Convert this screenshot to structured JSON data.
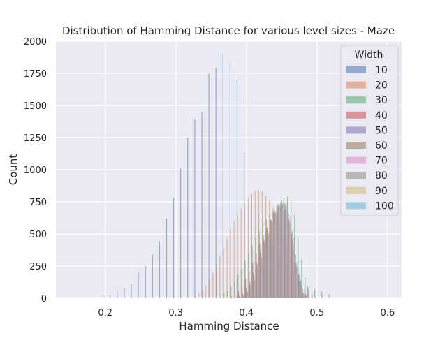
{
  "chart_data": {
    "type": "bar",
    "title": "Distribution of Hamming Distance for various level sizes - Maze",
    "xlabel": "Hamming Distance",
    "ylabel": "Count",
    "xlim": [
      0.13,
      0.62
    ],
    "ylim": [
      0,
      2000
    ],
    "xticks": [
      0.2,
      0.3,
      0.4,
      0.5,
      0.6
    ],
    "xtick_labels": [
      "0.2",
      "0.3",
      "0.4",
      "0.5",
      "0.6"
    ],
    "yticks": [
      0,
      250,
      500,
      750,
      1000,
      1250,
      1500,
      1750,
      2000
    ],
    "ytick_labels": [
      "0",
      "250",
      "500",
      "750",
      "1000",
      "1250",
      "1500",
      "1750",
      "2000"
    ],
    "grid": true,
    "legend": {
      "title": "Width",
      "placement": "top-right"
    },
    "series": [
      {
        "name": "10",
        "color": "#4c72b0",
        "x": [
          0.2,
          0.21,
          0.22,
          0.23,
          0.24,
          0.25,
          0.26,
          0.27,
          0.28,
          0.29,
          0.3,
          0.31,
          0.32,
          0.33,
          0.34,
          0.35,
          0.36,
          0.37,
          0.38,
          0.39,
          0.4,
          0.41,
          0.42,
          0.43,
          0.44,
          0.45,
          0.46,
          0.47,
          0.48,
          0.49,
          0.5,
          0.51,
          0.52
        ],
        "values": [
          20,
          25,
          60,
          80,
          110,
          200,
          250,
          340,
          440,
          620,
          780,
          1010,
          1250,
          1390,
          1450,
          1750,
          1790,
          1900,
          1840,
          1700,
          1140,
          800,
          650,
          520,
          410,
          330,
          270,
          200,
          140,
          90,
          70,
          50,
          30
        ]
      },
      {
        "name": "20",
        "color": "#dd8452",
        "x": [
          0.33,
          0.335,
          0.34,
          0.345,
          0.35,
          0.355,
          0.36,
          0.365,
          0.37,
          0.375,
          0.38,
          0.385,
          0.39,
          0.395,
          0.4,
          0.405,
          0.41,
          0.415,
          0.42,
          0.425,
          0.43,
          0.435,
          0.44,
          0.445,
          0.45,
          0.455,
          0.46,
          0.465,
          0.47,
          0.475,
          0.48,
          0.485,
          0.49,
          0.495,
          0.5
        ],
        "values": [
          20,
          40,
          70,
          100,
          150,
          200,
          260,
          330,
          400,
          470,
          540,
          600,
          650,
          700,
          740,
          780,
          810,
          830,
          840,
          830,
          800,
          760,
          700,
          640,
          570,
          490,
          400,
          320,
          240,
          170,
          110,
          70,
          40,
          20,
          10
        ]
      },
      {
        "name": "30",
        "color": "#55a868",
        "x": [
          0.36,
          0.365,
          0.37,
          0.375,
          0.38,
          0.385,
          0.39,
          0.395,
          0.4,
          0.405,
          0.41,
          0.415,
          0.42,
          0.425,
          0.43,
          0.435,
          0.44,
          0.445,
          0.45,
          0.455,
          0.46,
          0.465,
          0.47,
          0.475,
          0.48,
          0.485,
          0.49,
          0.495,
          0.5
        ],
        "values": [
          10,
          20,
          40,
          60,
          90,
          130,
          180,
          230,
          290,
          350,
          410,
          470,
          520,
          570,
          610,
          650,
          680,
          720,
          750,
          780,
          790,
          760,
          650,
          480,
          300,
          160,
          70,
          30,
          10
        ]
      },
      {
        "name": "40",
        "color": "#c44e52",
        "x": [
          0.38,
          0.385,
          0.39,
          0.395,
          0.4,
          0.405,
          0.41,
          0.415,
          0.42,
          0.425,
          0.43,
          0.435,
          0.44,
          0.445,
          0.45,
          0.455,
          0.46,
          0.465,
          0.47,
          0.475,
          0.48,
          0.485,
          0.49
        ],
        "values": [
          10,
          30,
          60,
          100,
          150,
          210,
          280,
          350,
          420,
          490,
          550,
          610,
          660,
          700,
          710,
          690,
          620,
          500,
          340,
          190,
          80,
          30,
          10
        ]
      },
      {
        "name": "50",
        "color": "#8172b3",
        "x": [
          0.39,
          0.395,
          0.4,
          0.405,
          0.41,
          0.415,
          0.42,
          0.425,
          0.43,
          0.435,
          0.44,
          0.445,
          0.45,
          0.455,
          0.46,
          0.465,
          0.47,
          0.475,
          0.48,
          0.485
        ],
        "values": [
          20,
          40,
          80,
          130,
          200,
          280,
          370,
          460,
          540,
          610,
          680,
          730,
          760,
          740,
          660,
          520,
          340,
          180,
          70,
          20
        ]
      },
      {
        "name": "60",
        "color": "#937860",
        "x": [
          0.395,
          0.4,
          0.405,
          0.41,
          0.415,
          0.42,
          0.425,
          0.43,
          0.435,
          0.44,
          0.445,
          0.45,
          0.455,
          0.46,
          0.465,
          0.47,
          0.475,
          0.48
        ],
        "values": [
          30,
          60,
          110,
          180,
          260,
          350,
          440,
          530,
          610,
          680,
          730,
          750,
          720,
          620,
          460,
          280,
          130,
          40
        ]
      },
      {
        "name": "70",
        "color": "#da8bc3",
        "x": [
          0.4,
          0.405,
          0.41,
          0.415,
          0.42,
          0.425,
          0.43,
          0.435,
          0.44,
          0.445,
          0.45,
          0.455,
          0.46,
          0.465,
          0.47,
          0.475,
          0.48
        ],
        "values": [
          50,
          90,
          150,
          230,
          320,
          420,
          510,
          600,
          670,
          720,
          740,
          710,
          600,
          440,
          260,
          120,
          40
        ]
      },
      {
        "name": "80",
        "color": "#8c8c8c",
        "x": [
          0.4,
          0.405,
          0.41,
          0.415,
          0.42,
          0.425,
          0.43,
          0.435,
          0.44,
          0.445,
          0.45,
          0.455,
          0.46,
          0.465,
          0.47,
          0.475,
          0.48
        ],
        "values": [
          40,
          80,
          140,
          220,
          310,
          410,
          500,
          590,
          660,
          710,
          730,
          690,
          580,
          410,
          240,
          100,
          30
        ]
      },
      {
        "name": "90",
        "color": "#ccb974",
        "x": [
          0.405,
          0.41,
          0.415,
          0.42,
          0.425,
          0.43,
          0.435,
          0.44,
          0.445,
          0.45,
          0.455,
          0.46,
          0.465,
          0.47,
          0.475,
          0.48
        ],
        "values": [
          60,
          120,
          200,
          300,
          400,
          500,
          590,
          670,
          730,
          760,
          740,
          640,
          470,
          280,
          120,
          40
        ]
      },
      {
        "name": "100",
        "color": "#64b5cd",
        "x": [
          0.405,
          0.41,
          0.415,
          0.42,
          0.425,
          0.43,
          0.435,
          0.44,
          0.445,
          0.45,
          0.455,
          0.46,
          0.465,
          0.47,
          0.475,
          0.48
        ],
        "values": [
          50,
          100,
          180,
          280,
          380,
          480,
          580,
          660,
          720,
          750,
          730,
          640,
          480,
          290,
          130,
          40
        ]
      }
    ]
  }
}
